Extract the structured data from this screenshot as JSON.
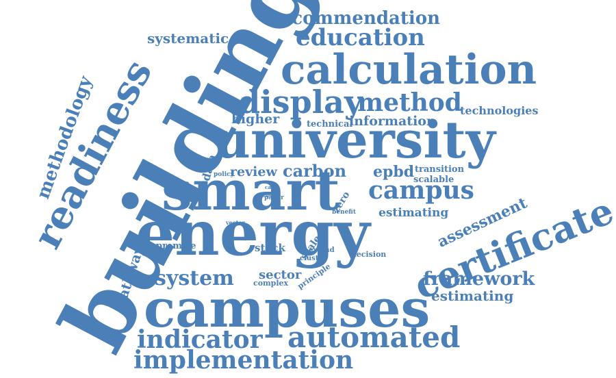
{
  "cloud": {
    "color": "#4a7fb8",
    "words": [
      "building",
      "energy",
      "smart",
      "university",
      "campuses",
      "certificate",
      "calculation",
      "readiness",
      "display",
      "method",
      "automated",
      "indicator",
      "implementation",
      "campus",
      "framework",
      "system",
      "education",
      "recommendation",
      "methodology",
      "systematic",
      "carbon",
      "review",
      "epbd",
      "technologies",
      "information",
      "higher",
      "assessment",
      "technical",
      "estimating",
      "sector",
      "pathway",
      "study",
      "scale",
      "data",
      "zero",
      "scalable",
      "transition",
      "stock",
      "premise",
      "decision",
      "cluster",
      "extend",
      "principle",
      "complex",
      "benefit",
      "vector",
      "paper",
      "policy",
      "focus",
      "case"
    ]
  }
}
